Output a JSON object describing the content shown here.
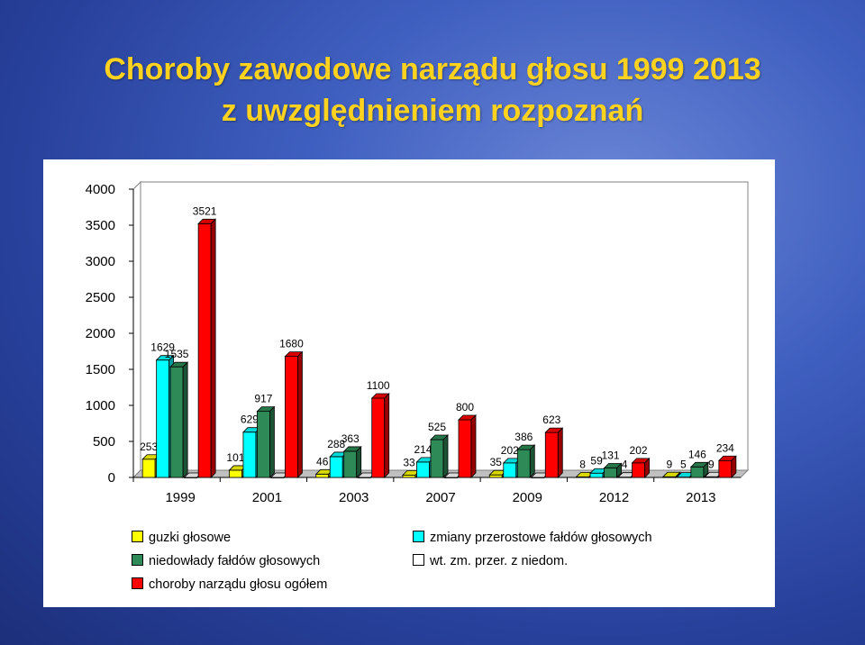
{
  "title": {
    "line1": "Choroby zawodowe narządu głosu 1999 2013",
    "line2": "z uwzględnieniem rozpoznań"
  },
  "chart_data": {
    "type": "bar",
    "categories": [
      "1999",
      "2001",
      "2003",
      "2007",
      "2009",
      "2012",
      "2013"
    ],
    "yticks": [
      "0",
      "500",
      "1000",
      "1500",
      "2000",
      "2500",
      "3000",
      "3500",
      "4000"
    ],
    "ylim": [
      0,
      4000
    ],
    "grid": false,
    "legend_position": "bottom",
    "series": [
      {
        "name": "guzki głosowe",
        "color": "#ffff00",
        "values": [
          253,
          101,
          46,
          33,
          35,
          8,
          9
        ],
        "labels": [
          "253",
          "101",
          "46",
          "33",
          "35",
          "8",
          "9"
        ]
      },
      {
        "name": "zmiany przerostowe fałdów głosowych",
        "color": "#00ffff",
        "values": [
          1629,
          629,
          288,
          214,
          202,
          59,
          5
        ],
        "labels": [
          "1629",
          "629",
          "288",
          "214",
          "202",
          "59",
          "5"
        ]
      },
      {
        "name": "niedowłady fałdów głosowych",
        "color": "#2e8b57",
        "values": [
          1535,
          917,
          363,
          525,
          386,
          131,
          146
        ],
        "labels": [
          "1535",
          "917",
          "363",
          "525",
          "386",
          "131",
          "146"
        ]
      },
      {
        "name": "wt. zm. przer. z niedom.",
        "color": "#ffffff",
        "values": [
          0,
          0,
          0,
          0,
          0,
          4,
          9
        ],
        "labels": [
          "",
          "",
          "",
          "",
          "",
          "4",
          "9"
        ]
      },
      {
        "name": "choroby narządu głosu ogółem",
        "color": "#ff0000",
        "values": [
          3521,
          1680,
          1100,
          800,
          623,
          202,
          234
        ],
        "labels": [
          "3521",
          "1680",
          "1100",
          "800",
          "623",
          "202",
          "234"
        ]
      }
    ]
  }
}
